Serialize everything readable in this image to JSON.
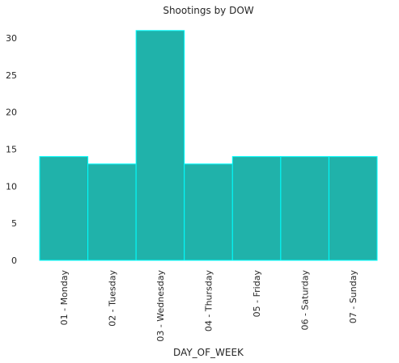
{
  "chart_data": {
    "type": "bar",
    "title": "Shootings by DOW",
    "xlabel": "DAY_OF_WEEK",
    "ylabel": "",
    "categories": [
      "01 - Monday",
      "02 - Tuesday",
      "03 - Wednesday",
      "04 - Thursday",
      "05 - Friday",
      "06 - Saturday",
      "07 - Sunday"
    ],
    "values": [
      14,
      13,
      31,
      13,
      14,
      14,
      14
    ],
    "ylim": [
      0,
      32.5
    ],
    "yticks": [
      0,
      5,
      10,
      15,
      20,
      25,
      30
    ],
    "grid": false,
    "legend": "none",
    "colors": {
      "bar_fill": "#20b2aa",
      "bar_edge": "#00ffff",
      "text": "#262626"
    }
  }
}
